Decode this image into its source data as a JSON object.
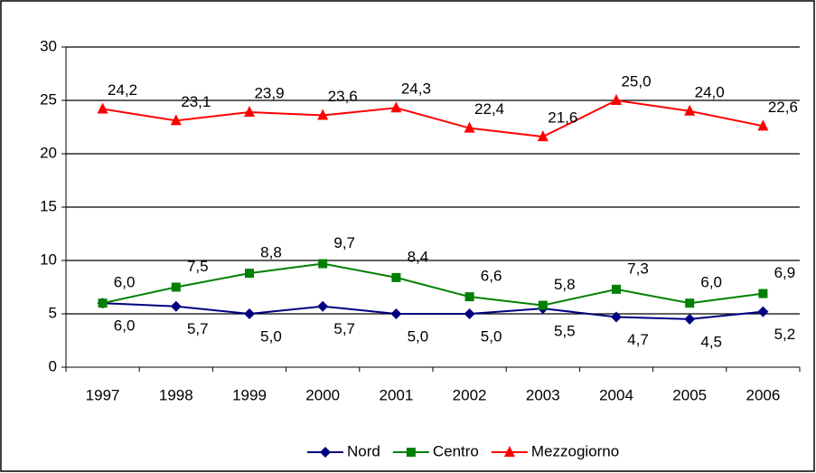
{
  "chart_data": {
    "type": "line",
    "categories": [
      "1997",
      "1998",
      "1999",
      "2000",
      "2001",
      "2002",
      "2003",
      "2004",
      "2005",
      "2006"
    ],
    "series": [
      {
        "name": "Nord",
        "color": "#000080",
        "marker": "diamond",
        "values": [
          6.0,
          5.7,
          5.0,
          5.7,
          5.0,
          5.0,
          5.5,
          4.7,
          4.5,
          5.2
        ],
        "value_labels": [
          "6,0",
          "5,7",
          "5,0",
          "5,7",
          "5,0",
          "5,0",
          "5,5",
          "4,7",
          "4,5",
          "5,2"
        ]
      },
      {
        "name": "Centro",
        "color": "#008000",
        "marker": "square",
        "values": [
          6.0,
          7.5,
          8.8,
          9.7,
          8.4,
          6.6,
          5.8,
          7.3,
          6.0,
          6.9
        ],
        "value_labels": [
          "6,0",
          "7,5",
          "8,8",
          "9,7",
          "8,4",
          "6,6",
          "5,8",
          "7,3",
          "6,0",
          "6,9"
        ]
      },
      {
        "name": "Mezzogiorno",
        "color": "#ff0000",
        "marker": "triangle",
        "values": [
          24.2,
          23.1,
          23.9,
          23.6,
          24.3,
          22.4,
          21.6,
          25.0,
          24.0,
          22.6
        ],
        "value_labels": [
          "24,2",
          "23,1",
          "23,9",
          "23,6",
          "24,3",
          "22,4",
          "21,6",
          "25,0",
          "24,0",
          "22,6"
        ]
      }
    ],
    "ylim": [
      0,
      30
    ],
    "yticks": [
      0,
      5,
      10,
      15,
      20,
      25,
      30
    ],
    "grid": true,
    "legend": "bottom"
  }
}
